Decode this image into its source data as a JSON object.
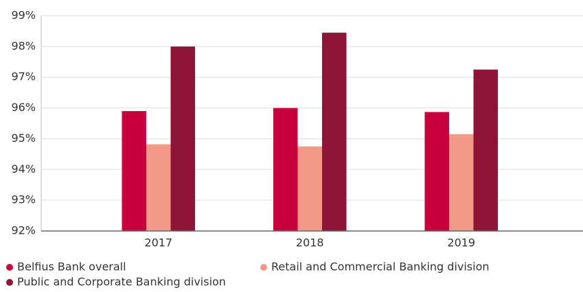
{
  "chart_data": {
    "type": "bar",
    "categories": [
      "2017",
      "2018",
      "2019"
    ],
    "series": [
      {
        "name": "Belfius Bank overall",
        "color": "#c8003c",
        "values": [
          95.9,
          96.0,
          95.87
        ]
      },
      {
        "name": "Retail and Commercial Banking division",
        "color": "#f29a85",
        "values": [
          94.82,
          94.75,
          95.15
        ]
      },
      {
        "name": "Public and Corporate Banking division",
        "color": "#8e1538",
        "values": [
          98.0,
          98.45,
          97.25
        ]
      }
    ],
    "ylim": [
      92,
      99
    ],
    "yticks": [
      {
        "value": 92,
        "label": "92%"
      },
      {
        "value": 93,
        "label": "93%"
      },
      {
        "value": 94,
        "label": "94%"
      },
      {
        "value": 95,
        "label": "95%"
      },
      {
        "value": 96,
        "label": "96%"
      },
      {
        "value": 97,
        "label": "97%"
      },
      {
        "value": 98,
        "label": "98%"
      },
      {
        "value": 99,
        "label": "99%"
      }
    ],
    "grid": true
  }
}
